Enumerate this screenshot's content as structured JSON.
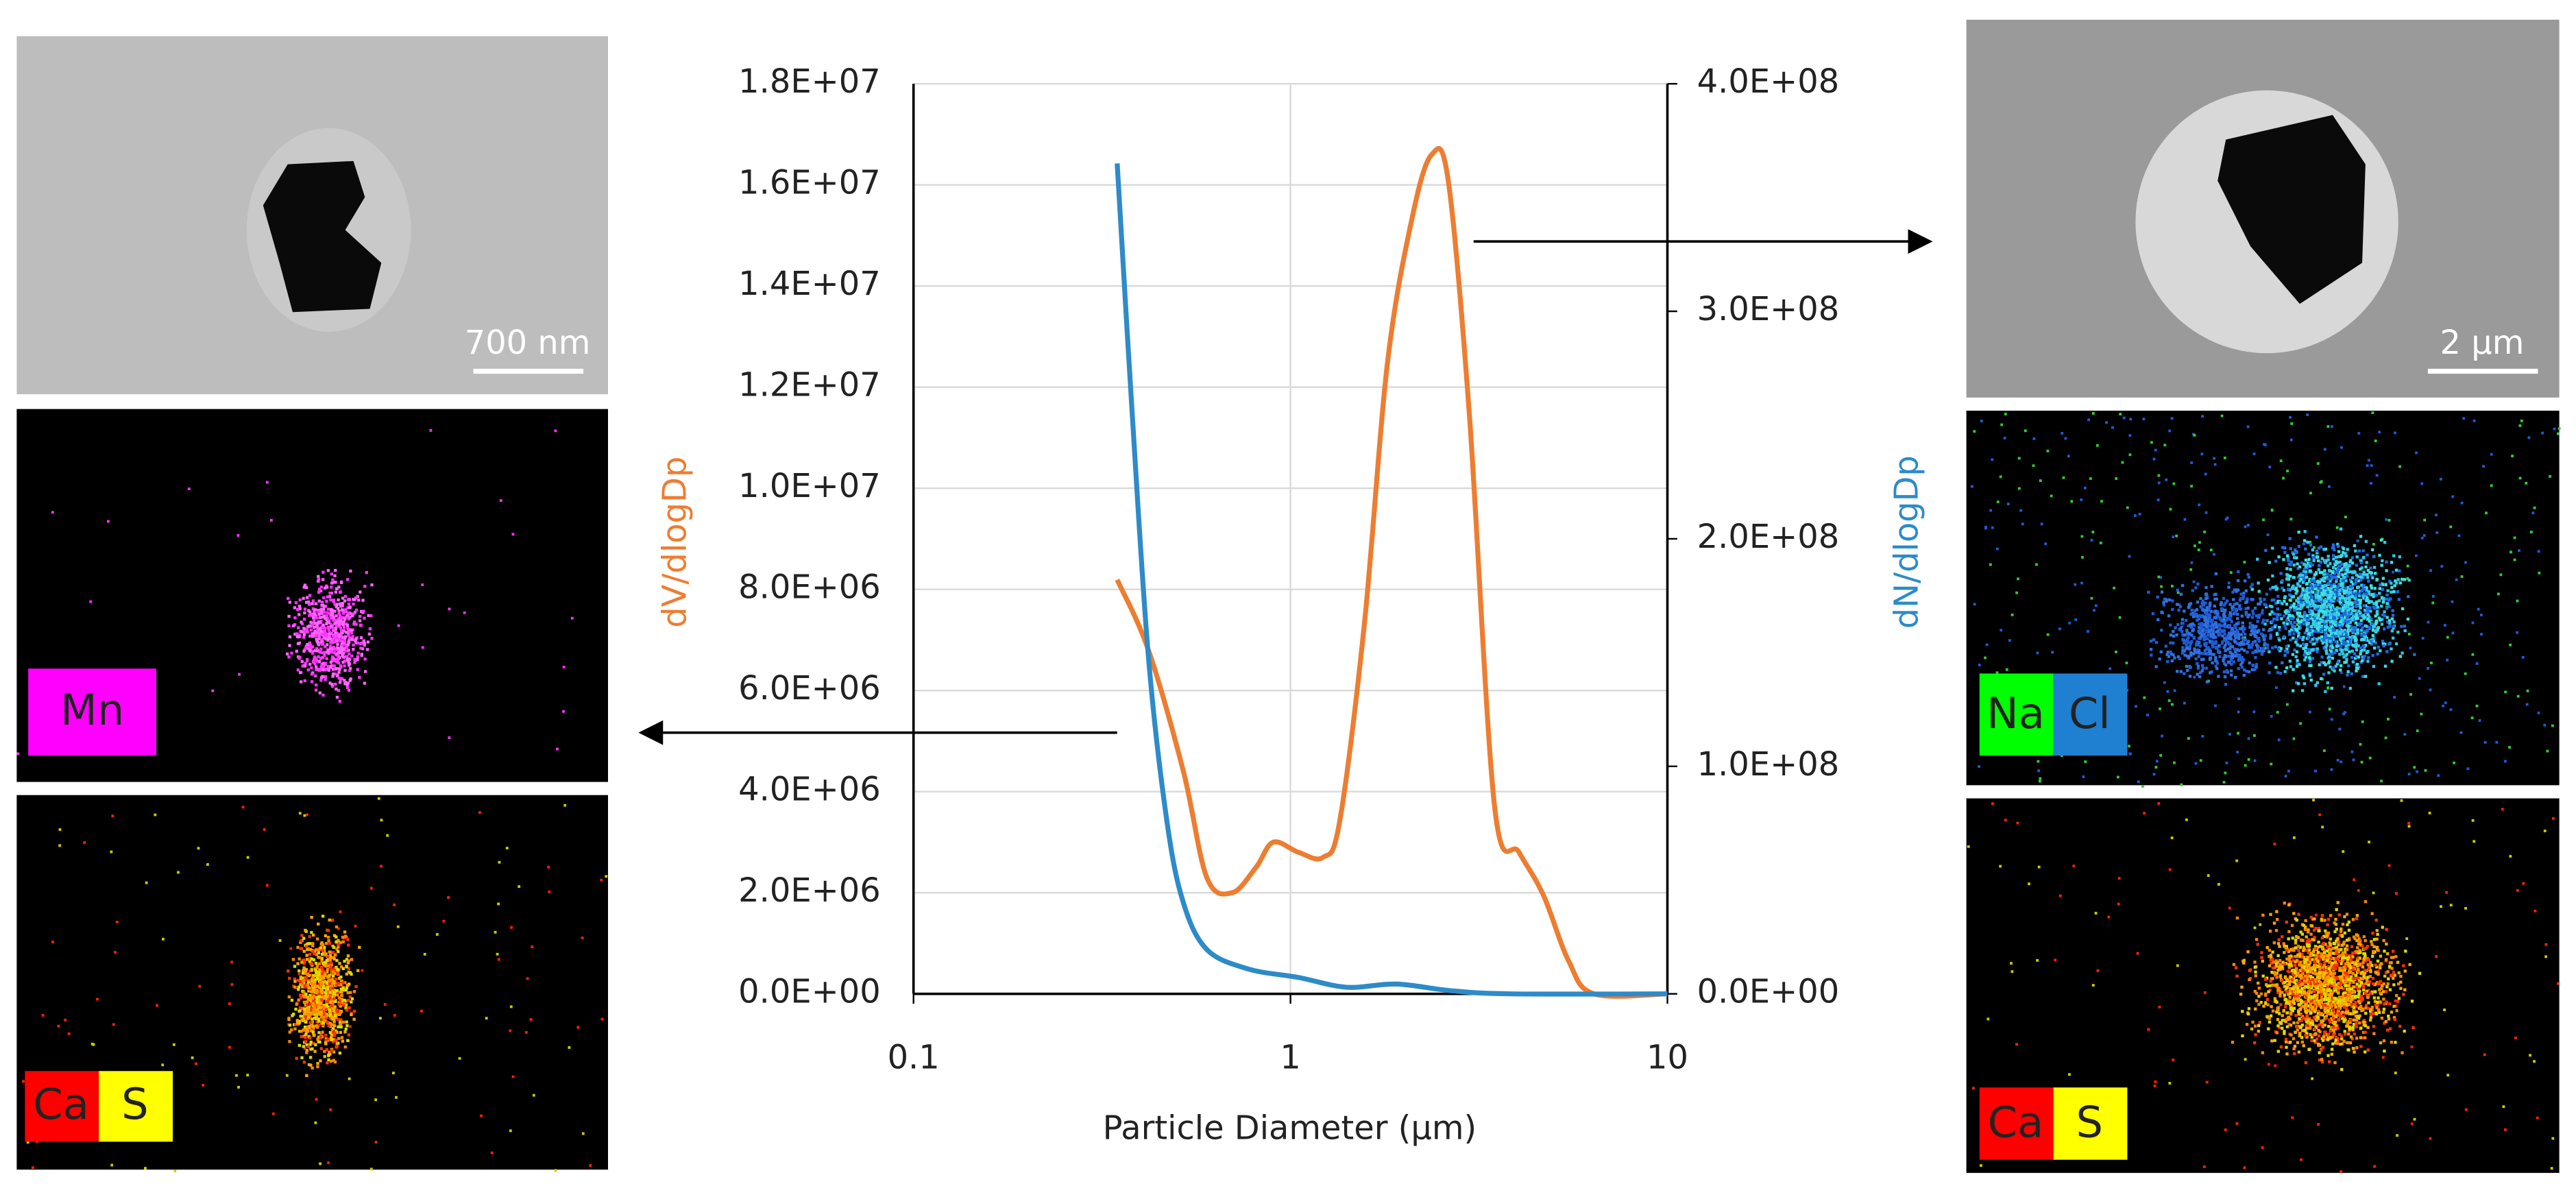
{
  "chart_data": {
    "type": "line",
    "xscale": "log",
    "grid": true,
    "x_label": "Particle Diameter  (µm)",
    "y_label": "dV/dlogDp",
    "y2_label": "dN/dlogDp",
    "xlim": [
      0.1,
      10
    ],
    "xticks": [
      0.1,
      1,
      10
    ],
    "ylim": [
      0,
      18000000
    ],
    "yticks": [
      {
        "value": 0,
        "label": "0.0E+00"
      },
      {
        "value": 2000000,
        "label": "2.0E+06"
      },
      {
        "value": 4000000,
        "label": "4.0E+06"
      },
      {
        "value": 6000000,
        "label": "6.0E+06"
      },
      {
        "value": 8000000,
        "label": "8.0E+06"
      },
      {
        "value": 10000000,
        "label": "1.0E+07"
      },
      {
        "value": 12000000,
        "label": "1.2E+07"
      },
      {
        "value": 14000000,
        "label": "1.4E+07"
      },
      {
        "value": 16000000,
        "label": "1.6E+07"
      },
      {
        "value": 18000000,
        "label": "1.8E+07"
      }
    ],
    "y2lim": [
      0,
      400000000
    ],
    "y2ticks": [
      {
        "value": 0,
        "label": "0.0E+00"
      },
      {
        "value": 100000000,
        "label": "1.0E+08"
      },
      {
        "value": 200000000,
        "label": "2.0E+08"
      },
      {
        "value": 300000000,
        "label": "3.0E+08"
      },
      {
        "value": 400000000,
        "label": "4.0E+08"
      }
    ],
    "series": [
      {
        "color": "#ED7D31",
        "axis": "y",
        "x": [
          0.347,
          0.42,
          0.52,
          0.6,
          0.7,
          0.81,
          0.9,
          1.05,
          1.22,
          1.35,
          1.57,
          1.81,
          2.11,
          2.37,
          2.62,
          2.98,
          3.48,
          4.04,
          4.69,
          5.47,
          6.38,
          10
        ],
        "values": [
          8190000,
          6800000,
          4400000,
          2300000,
          2000000,
          2500000,
          3000000,
          2800000,
          2700000,
          3400000,
          7300000,
          12500000,
          15400000,
          16600000,
          16100000,
          11500000,
          3700000,
          2800000,
          1950000,
          650000,
          0,
          0
        ]
      },
      {
        "color": "#2E8BC8",
        "axis": "y2",
        "x": [
          0.347,
          0.38,
          0.42,
          0.47,
          0.52,
          0.6,
          0.77,
          1.05,
          1.41,
          1.91,
          2.66,
          3.85,
          10
        ],
        "values": [
          365000000,
          256000000,
          148000000,
          76000000,
          40000000,
          19500000,
          11000000,
          7200000,
          2900000,
          4300000,
          1400000,
          0,
          0
        ]
      }
    ]
  },
  "images": {
    "left_sem_scale": "700 nm",
    "right_sem_scale": "2 µm",
    "left_map1_labels": [
      "Mn"
    ],
    "left_map2_labels": [
      "Ca",
      "S"
    ],
    "right_map1_labels": [
      "Na",
      "Cl"
    ],
    "right_map2_labels": [
      "Ca",
      "S"
    ]
  }
}
